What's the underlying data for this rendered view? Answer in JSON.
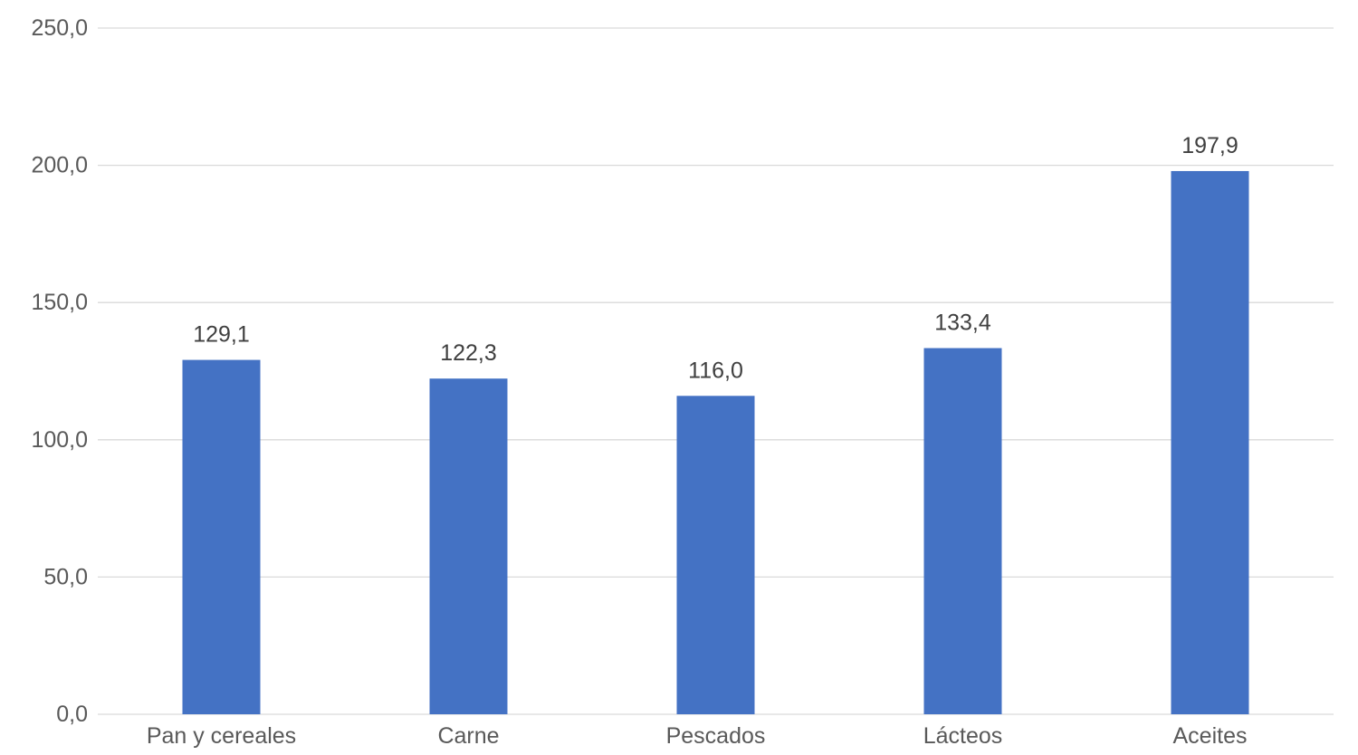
{
  "chart_data": {
    "type": "bar",
    "categories": [
      "Pan y cereales",
      "Carne",
      "Pescados",
      "Lácteos",
      "Aceites"
    ],
    "values": [
      129.1,
      122.3,
      116.0,
      133.4,
      197.9
    ],
    "value_labels": [
      "129,1",
      "122,3",
      "116,0",
      "133,4",
      "197,9"
    ],
    "title": "",
    "xlabel": "",
    "ylabel": "",
    "ylim": [
      0,
      250
    ],
    "yticks": [
      0,
      50,
      100,
      150,
      200,
      250
    ],
    "ytick_labels": [
      "0,0",
      "50,0",
      "100,0",
      "150,0",
      "200,0",
      "250,0"
    ],
    "grid": true,
    "legend": "none",
    "bar_color": "#4472c4"
  }
}
